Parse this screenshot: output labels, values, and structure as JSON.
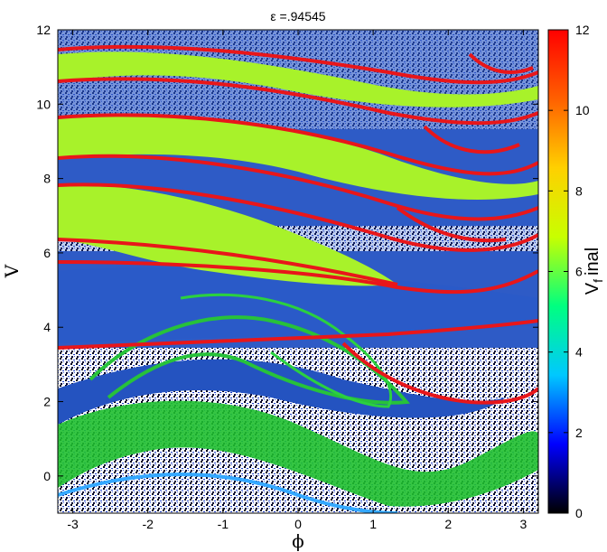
{
  "chart_data": {
    "type": "heatmap",
    "title": "ε =.94545",
    "xlabel": "ϕ",
    "ylabel": "V",
    "xlim": [
      -3.2,
      3.2
    ],
    "ylim": [
      -1,
      12
    ],
    "x_ticks": [
      -3,
      -2,
      -1,
      0,
      1,
      2,
      3
    ],
    "y_ticks": [
      0,
      2,
      4,
      6,
      8,
      10,
      12
    ],
    "colorbar": {
      "label": "V_final",
      "label_main": "V",
      "label_sub": "f",
      "label_rest": "inal",
      "range": [
        0,
        12
      ],
      "ticks": [
        0,
        2,
        4,
        6,
        8,
        10,
        12
      ],
      "colormap": [
        "#000000",
        "#0000ff",
        "#00c8ff",
        "#00ff80",
        "#c8ff00",
        "#ffd000",
        "#ff6000",
        "#ff0000"
      ]
    },
    "grid": false,
    "legend": "none"
  }
}
